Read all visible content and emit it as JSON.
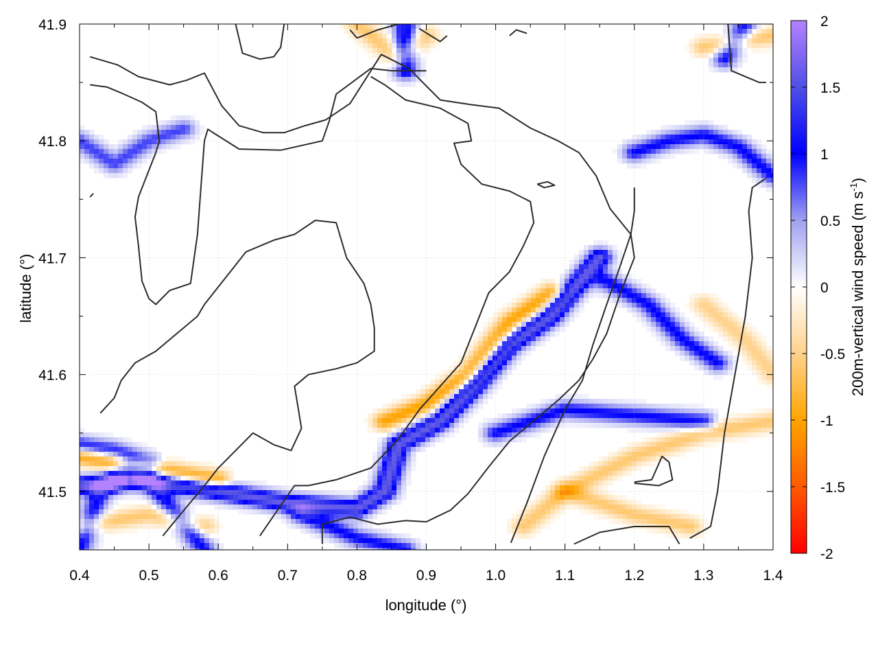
{
  "chart_data": {
    "type": "heatmap",
    "title": "",
    "xlabel": "longitude (°)",
    "ylabel": "latitude (°)",
    "xlim": [
      0.4,
      1.4
    ],
    "ylim": [
      41.45,
      41.9
    ],
    "xticks": [
      0.4,
      0.5,
      0.6,
      0.7,
      0.8,
      0.9,
      1.0,
      1.1,
      1.2,
      1.3,
      1.4
    ],
    "xtick_labels": [
      "0.4",
      "0.5",
      "0.6",
      "0.7",
      "0.8",
      "0.9",
      "1.0",
      "1.1",
      "1.2",
      "1.3",
      "1.4"
    ],
    "yticks": [
      41.5,
      41.6,
      41.7,
      41.8,
      41.9
    ],
    "ytick_labels": [
      "41.5",
      "41.6",
      "41.7",
      "41.8",
      "41.9"
    ],
    "grid": true,
    "colorbar": {
      "label_main": "200m-vertical wind speed (m s",
      "label_sup": "-1",
      "label_close": ")",
      "range": [
        -2,
        2
      ],
      "ticks": [
        2,
        1.5,
        1,
        0.5,
        0,
        -0.5,
        -1,
        -1.5,
        -2
      ],
      "tick_labels": [
        "2",
        "1.5",
        "1",
        "0.5",
        "0",
        "-0.5",
        "-1",
        "-1.5",
        "-2"
      ],
      "colors": [
        {
          "value": -2,
          "color": "#ff0000"
        },
        {
          "value": -1.5,
          "color": "#ff5a00"
        },
        {
          "value": -1,
          "color": "#ffa500"
        },
        {
          "value": -0.5,
          "color": "#ffd28c"
        },
        {
          "value": 0,
          "color": "#ffffff"
        },
        {
          "value": 0.5,
          "color": "#a0a0f0"
        },
        {
          "value": 1,
          "color": "#0000ff"
        },
        {
          "value": 1.5,
          "color": "#5050e6"
        },
        {
          "value": 2,
          "color": "#b482ff"
        }
      ]
    },
    "features": [
      {
        "name": "positive-band",
        "value": 1.6,
        "width": 0.012,
        "points": [
          [
            0.4,
            41.505
          ],
          [
            0.5,
            41.51
          ],
          [
            0.6,
            41.5
          ],
          [
            0.7,
            41.49
          ],
          [
            0.8,
            41.485
          ],
          [
            0.84,
            41.5
          ],
          [
            0.86,
            41.54
          ],
          [
            0.92,
            41.56
          ],
          [
            0.97,
            41.59
          ],
          [
            1.02,
            41.625
          ],
          [
            1.08,
            41.65
          ],
          [
            1.15,
            41.7
          ]
        ]
      },
      {
        "name": "positive-band",
        "value": 1.0,
        "width": 0.012,
        "points": [
          [
            0.4,
            41.54
          ],
          [
            0.45,
            41.535
          ],
          [
            0.5,
            41.525
          ]
        ]
      },
      {
        "name": "positive-band",
        "value": 1.0,
        "width": 0.012,
        "points": [
          [
            0.4,
            41.45
          ],
          [
            0.43,
            41.5
          ],
          [
            0.47,
            41.52
          ],
          [
            0.5,
            41.51
          ],
          [
            0.54,
            41.48
          ],
          [
            0.58,
            41.45
          ]
        ]
      },
      {
        "name": "positive-band",
        "value": 1.0,
        "width": 0.012,
        "points": [
          [
            0.72,
            41.48
          ],
          [
            0.8,
            41.46
          ],
          [
            0.87,
            41.45
          ]
        ]
      },
      {
        "name": "positive-band",
        "value": 1.0,
        "width": 0.012,
        "points": [
          [
            1.16,
            41.68
          ],
          [
            1.22,
            41.66
          ],
          [
            1.27,
            41.63
          ],
          [
            1.32,
            41.61
          ]
        ]
      },
      {
        "name": "positive-band",
        "value": 1.0,
        "width": 0.012,
        "points": [
          [
            1.0,
            41.55
          ],
          [
            1.1,
            41.57
          ],
          [
            1.2,
            41.565
          ],
          [
            1.3,
            41.56
          ]
        ]
      },
      {
        "name": "positive-band",
        "value": 1.0,
        "width": 0.012,
        "points": [
          [
            1.2,
            41.79
          ],
          [
            1.25,
            41.8
          ],
          [
            1.3,
            41.805
          ],
          [
            1.35,
            41.795
          ],
          [
            1.4,
            41.77
          ]
        ]
      },
      {
        "name": "positive-band",
        "value": 0.8,
        "width": 0.012,
        "points": [
          [
            0.4,
            41.8
          ],
          [
            0.45,
            41.78
          ],
          [
            0.5,
            41.8
          ],
          [
            0.55,
            41.81
          ]
        ]
      },
      {
        "name": "positive-band",
        "value": 1.2,
        "width": 0.012,
        "points": [
          [
            0.87,
            41.9
          ],
          [
            0.87,
            41.86
          ]
        ]
      },
      {
        "name": "positive-band",
        "value": 1.0,
        "width": 0.012,
        "points": [
          [
            1.33,
            41.87
          ],
          [
            1.36,
            41.9
          ]
        ]
      },
      {
        "name": "negative-band",
        "value": -1.0,
        "width": 0.012,
        "points": [
          [
            0.4,
            41.53
          ],
          [
            0.5,
            41.52
          ],
          [
            0.6,
            41.51
          ]
        ]
      },
      {
        "name": "negative-band",
        "value": -1.0,
        "width": 0.012,
        "points": [
          [
            0.84,
            41.56
          ],
          [
            0.9,
            41.575
          ],
          [
            0.96,
            41.6
          ],
          [
            1.02,
            41.645
          ],
          [
            1.08,
            41.67
          ]
        ]
      },
      {
        "name": "negative-band",
        "value": -0.6,
        "width": 0.012,
        "points": [
          [
            1.1,
            41.5
          ],
          [
            1.2,
            41.53
          ],
          [
            1.3,
            41.55
          ],
          [
            1.4,
            41.56
          ]
        ]
      },
      {
        "name": "negative-band",
        "value": -0.6,
        "width": 0.012,
        "points": [
          [
            0.4,
            41.47
          ],
          [
            0.5,
            41.48
          ],
          [
            0.58,
            41.47
          ]
        ]
      },
      {
        "name": "negative-band",
        "value": -0.6,
        "width": 0.012,
        "points": [
          [
            0.8,
            41.9
          ],
          [
            0.86,
            41.87
          ],
          [
            0.9,
            41.89
          ]
        ]
      },
      {
        "name": "negative-band",
        "value": -0.6,
        "width": 0.012,
        "points": [
          [
            1.3,
            41.88
          ],
          [
            1.4,
            41.89
          ]
        ]
      },
      {
        "name": "negative-band",
        "value": -0.6,
        "width": 0.012,
        "points": [
          [
            1.04,
            41.47
          ],
          [
            1.1,
            41.5
          ],
          [
            1.2,
            41.48
          ],
          [
            1.28,
            41.47
          ]
        ]
      },
      {
        "name": "negative-band",
        "value": -0.5,
        "width": 0.012,
        "points": [
          [
            1.3,
            41.66
          ],
          [
            1.36,
            41.63
          ],
          [
            1.4,
            41.6
          ]
        ]
      }
    ],
    "contours": [
      [
        [
          0.415,
          41.872
        ],
        [
          0.455,
          41.865
        ],
        [
          0.485,
          41.855
        ],
        [
          0.53,
          41.848
        ],
        [
          0.555,
          41.852
        ],
        [
          0.58,
          41.858
        ],
        [
          0.605,
          41.83
        ],
        [
          0.63,
          41.813
        ],
        [
          0.665,
          41.807
        ],
        [
          0.695,
          41.807
        ],
        [
          0.725,
          41.813
        ],
        [
          0.755,
          41.818
        ],
        [
          0.79,
          41.832
        ],
        [
          0.835,
          41.874
        ],
        [
          0.875,
          41.862
        ],
        [
          0.92,
          41.835
        ],
        [
          0.965,
          41.831
        ],
        [
          1.005,
          41.828
        ],
        [
          1.05,
          41.811
        ],
        [
          1.09,
          41.8
        ],
        [
          1.12,
          41.79
        ],
        [
          1.145,
          41.77
        ],
        [
          1.165,
          41.742
        ],
        [
          1.195,
          41.72
        ],
        [
          1.2,
          41.7
        ],
        [
          1.18,
          41.67
        ],
        [
          1.16,
          41.635
        ],
        [
          1.14,
          41.613
        ],
        [
          1.12,
          41.595
        ],
        [
          1.09,
          41.578
        ],
        [
          1.05,
          41.558
        ],
        [
          1.02,
          41.543
        ],
        [
          0.99,
          41.521
        ],
        [
          0.96,
          41.498
        ],
        [
          0.935,
          41.484
        ],
        [
          0.9,
          41.474
        ],
        [
          0.87,
          41.475
        ],
        [
          0.83,
          41.472
        ],
        [
          0.79,
          41.478
        ],
        [
          0.75,
          41.472
        ],
        [
          0.75,
          41.455
        ]
      ],
      [
        [
          0.415,
          41.848
        ],
        [
          0.44,
          41.846
        ],
        [
          0.46,
          41.841
        ],
        [
          0.49,
          41.833
        ],
        [
          0.51,
          41.825
        ],
        [
          0.515,
          41.8
        ],
        [
          0.51,
          41.79
        ],
        [
          0.485,
          41.752
        ],
        [
          0.48,
          41.735
        ],
        [
          0.485,
          41.71
        ],
        [
          0.49,
          41.68
        ],
        [
          0.5,
          41.665
        ],
        [
          0.51,
          41.66
        ],
        [
          0.53,
          41.672
        ],
        [
          0.56,
          41.678
        ],
        [
          0.57,
          41.72
        ],
        [
          0.575,
          41.76
        ],
        [
          0.58,
          41.8
        ],
        [
          0.585,
          41.81
        ],
        [
          0.59,
          41.808
        ],
        [
          0.63,
          41.793
        ],
        [
          0.69,
          41.792
        ],
        [
          0.75,
          41.8
        ],
        [
          0.76,
          41.817
        ],
        [
          0.77,
          41.84
        ],
        [
          0.82,
          41.862
        ],
        [
          0.85,
          41.86
        ],
        [
          0.9,
          41.86
        ]
      ],
      [
        [
          0.415,
          41.752
        ],
        [
          0.42,
          41.755
        ]
      ],
      [
        [
          0.43,
          41.567
        ],
        [
          0.45,
          41.58
        ],
        [
          0.46,
          41.595
        ],
        [
          0.48,
          41.61
        ],
        [
          0.51,
          41.62
        ],
        [
          0.53,
          41.63
        ],
        [
          0.55,
          41.64
        ],
        [
          0.57,
          41.65
        ],
        [
          0.58,
          41.66
        ],
        [
          0.6,
          41.675
        ],
        [
          0.62,
          41.69
        ],
        [
          0.64,
          41.705
        ],
        [
          0.68,
          41.715
        ],
        [
          0.71,
          41.72
        ],
        [
          0.74,
          41.732
        ],
        [
          0.77,
          41.73
        ],
        [
          0.785,
          41.7
        ],
        [
          0.81,
          41.678
        ],
        [
          0.82,
          41.66
        ],
        [
          0.825,
          41.64
        ],
        [
          0.825,
          41.62
        ],
        [
          0.8,
          41.61
        ],
        [
          0.77,
          41.605
        ],
        [
          0.73,
          41.6
        ],
        [
          0.71,
          41.59
        ],
        [
          0.715,
          41.572
        ],
        [
          0.72,
          41.554
        ],
        [
          0.705,
          41.535
        ],
        [
          0.68,
          41.54
        ],
        [
          0.65,
          41.55
        ],
        [
          0.625,
          41.535
        ],
        [
          0.6,
          41.52
        ],
        [
          0.58,
          41.505
        ],
        [
          0.545,
          41.48
        ],
        [
          0.52,
          41.462
        ]
      ],
      [
        [
          0.66,
          41.462
        ],
        [
          0.69,
          41.488
        ],
        [
          0.71,
          41.505
        ],
        [
          0.73,
          41.505
        ],
        [
          0.77,
          41.51
        ],
        [
          0.82,
          41.52
        ],
        [
          0.86,
          41.545
        ],
        [
          0.89,
          41.57
        ],
        [
          0.92,
          41.59
        ],
        [
          0.95,
          41.61
        ],
        [
          0.97,
          41.64
        ],
        [
          0.99,
          41.67
        ],
        [
          1.02,
          41.688
        ],
        [
          1.04,
          41.71
        ],
        [
          1.055,
          41.73
        ],
        [
          1.05,
          41.748
        ],
        [
          1.02,
          41.757
        ],
        [
          0.98,
          41.763
        ],
        [
          0.95,
          41.78
        ],
        [
          0.94,
          41.798
        ],
        [
          0.965,
          41.8
        ],
        [
          0.96,
          41.815
        ],
        [
          0.92,
          41.828
        ],
        [
          0.87,
          41.835
        ],
        [
          0.84,
          41.848
        ],
        [
          0.82,
          41.855
        ]
      ],
      [
        [
          1.06,
          41.763
        ],
        [
          1.075,
          41.765
        ],
        [
          1.085,
          41.762
        ],
        [
          1.07,
          41.76
        ],
        [
          1.06,
          41.763
        ]
      ],
      [
        [
          1.022,
          41.456
        ],
        [
          1.045,
          41.49
        ],
        [
          1.07,
          41.53
        ],
        [
          1.1,
          41.57
        ],
        [
          1.125,
          41.595
        ],
        [
          1.14,
          41.625
        ],
        [
          1.16,
          41.66
        ],
        [
          1.175,
          41.685
        ],
        [
          1.195,
          41.72
        ],
        [
          1.2,
          41.74
        ],
        [
          1.2,
          41.76
        ]
      ],
      [
        [
          1.113,
          41.455
        ],
        [
          1.15,
          41.465
        ],
        [
          1.2,
          41.47
        ],
        [
          1.25,
          41.47
        ],
        [
          1.265,
          41.455
        ]
      ],
      [
        [
          1.2,
          41.508
        ],
        [
          1.225,
          41.51
        ],
        [
          1.24,
          41.53
        ],
        [
          1.25,
          41.525
        ],
        [
          1.255,
          41.51
        ],
        [
          1.235,
          41.505
        ],
        [
          1.2,
          41.507
        ]
      ],
      [
        [
          1.28,
          41.46
        ],
        [
          1.31,
          41.47
        ],
        [
          1.32,
          41.5
        ],
        [
          1.33,
          41.55
        ],
        [
          1.345,
          41.6
        ],
        [
          1.36,
          41.65
        ],
        [
          1.37,
          41.7
        ],
        [
          1.365,
          41.74
        ],
        [
          1.37,
          41.76
        ],
        [
          1.39,
          41.768
        ]
      ],
      [
        [
          1.335,
          41.9
        ],
        [
          1.34,
          41.86
        ],
        [
          1.38,
          41.85
        ],
        [
          1.39,
          41.85
        ]
      ],
      [
        [
          0.625,
          41.9
        ],
        [
          0.635,
          41.875
        ],
        [
          0.66,
          41.87
        ],
        [
          0.68,
          41.872
        ],
        [
          0.69,
          41.88
        ],
        [
          0.695,
          41.9
        ]
      ],
      [
        [
          0.79,
          41.895
        ],
        [
          0.8,
          41.888
        ],
        [
          0.83,
          41.895
        ],
        [
          0.86,
          41.9
        ]
      ],
      [
        [
          0.89,
          41.896
        ],
        [
          0.92,
          41.885
        ],
        [
          0.93,
          41.89
        ]
      ],
      [
        [
          1.02,
          41.89
        ],
        [
          1.03,
          41.895
        ],
        [
          1.045,
          41.892
        ]
      ]
    ]
  }
}
